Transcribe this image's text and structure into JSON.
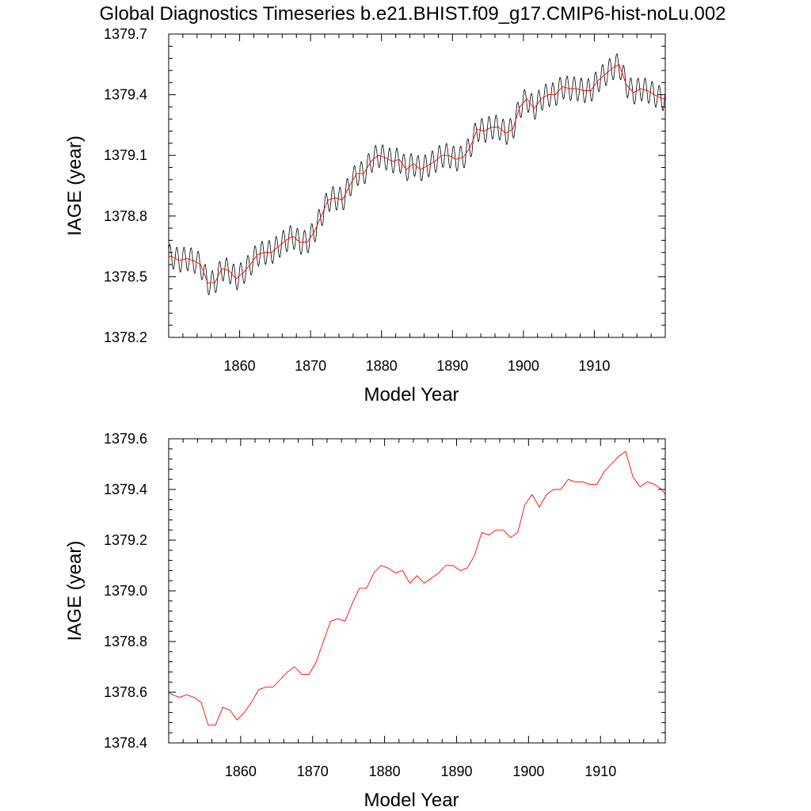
{
  "figure": {
    "title": "Global Diagnostics Timeseries b.e21.BHIST.f09_g17.CMIP6-hist-noLu.002"
  },
  "colors": {
    "monthly": "#000000",
    "annual": "#ff0000",
    "axes": "#000000",
    "background": "#ffffff"
  },
  "chart_data": [
    {
      "type": "line",
      "title": "Global Diagnostics Timeseries b.e21.BHIST.f09_g17.CMIP6-hist-noLu.002",
      "xlabel": "Model Year",
      "ylabel": "IAGE (year)",
      "xlim": [
        1850,
        1920
      ],
      "ylim": [
        1378.2,
        1379.7
      ],
      "grid": false,
      "legend": "none",
      "x_ticks": [
        1860,
        1870,
        1880,
        1890,
        1900,
        1910
      ],
      "y_ticks": [
        1378.2,
        1378.5,
        1378.8,
        1379.1,
        1379.4,
        1379.7
      ],
      "y_tick_labels": [
        "1378.2",
        "1378.5",
        "1378.8",
        "1379.1",
        "1379.4",
        "1379.7"
      ],
      "series": [
        {
          "color": "#000000",
          "stroke_width": 0.8,
          "seasonal_amplitude": 0.06,
          "x": [
            1850.0,
            1850.5,
            1851.5,
            1852.5,
            1853.5,
            1854.5,
            1855.5,
            1856.5,
            1857.5,
            1858.5,
            1859.5,
            1860.5,
            1861.5,
            1862.5,
            1863.5,
            1864.5,
            1865.5,
            1866.5,
            1867.5,
            1868.5,
            1869.5,
            1870.5,
            1871.5,
            1872.5,
            1873.5,
            1874.5,
            1875.5,
            1876.5,
            1877.5,
            1878.5,
            1879.5,
            1880.5,
            1881.5,
            1882.5,
            1883.5,
            1884.5,
            1885.5,
            1886.5,
            1887.5,
            1888.5,
            1889.5,
            1890.5,
            1891.5,
            1892.5,
            1893.5,
            1894.5,
            1895.5,
            1896.5,
            1897.5,
            1898.5,
            1899.5,
            1900.5,
            1901.5,
            1902.5,
            1903.5,
            1904.5,
            1905.5,
            1906.5,
            1907.5,
            1908.5,
            1909.5,
            1910.5,
            1911.5,
            1912.5,
            1913.5,
            1914.5,
            1915.5,
            1916.5,
            1917.5,
            1918.5,
            1919.5,
            1920.0
          ],
          "values": [
            1378.6,
            1378.6,
            1378.58,
            1378.59,
            1378.58,
            1378.56,
            1378.47,
            1378.47,
            1378.54,
            1378.53,
            1378.49,
            1378.52,
            1378.56,
            1378.61,
            1378.62,
            1378.62,
            1378.65,
            1378.68,
            1378.7,
            1378.67,
            1378.67,
            1378.72,
            1378.8,
            1378.88,
            1378.89,
            1378.88,
            1378.95,
            1379.01,
            1379.01,
            1379.07,
            1379.1,
            1379.09,
            1379.07,
            1379.08,
            1379.03,
            1379.06,
            1379.03,
            1379.05,
            1379.07,
            1379.1,
            1379.1,
            1379.08,
            1379.09,
            1379.14,
            1379.23,
            1379.22,
            1379.24,
            1379.24,
            1379.21,
            1379.23,
            1379.34,
            1379.38,
            1379.33,
            1379.38,
            1379.4,
            1379.4,
            1379.44,
            1379.43,
            1379.43,
            1379.42,
            1379.42,
            1379.47,
            1379.5,
            1379.53,
            1379.55,
            1379.45,
            1379.41,
            1379.43,
            1379.42,
            1379.4,
            1379.38,
            1379.38
          ]
        },
        {
          "color": "#ff0000",
          "stroke_width": 0.9,
          "x": [
            1850.0,
            1850.5,
            1851.5,
            1852.5,
            1853.5,
            1854.5,
            1855.5,
            1856.5,
            1857.5,
            1858.5,
            1859.5,
            1860.5,
            1861.5,
            1862.5,
            1863.5,
            1864.5,
            1865.5,
            1866.5,
            1867.5,
            1868.5,
            1869.5,
            1870.5,
            1871.5,
            1872.5,
            1873.5,
            1874.5,
            1875.5,
            1876.5,
            1877.5,
            1878.5,
            1879.5,
            1880.5,
            1881.5,
            1882.5,
            1883.5,
            1884.5,
            1885.5,
            1886.5,
            1887.5,
            1888.5,
            1889.5,
            1890.5,
            1891.5,
            1892.5,
            1893.5,
            1894.5,
            1895.5,
            1896.5,
            1897.5,
            1898.5,
            1899.5,
            1900.5,
            1901.5,
            1902.5,
            1903.5,
            1904.5,
            1905.5,
            1906.5,
            1907.5,
            1908.5,
            1909.5,
            1910.5,
            1911.5,
            1912.5,
            1913.5,
            1914.5,
            1915.5,
            1916.5,
            1917.5,
            1918.5,
            1919.5,
            1920.0
          ],
          "values": [
            1378.6,
            1378.6,
            1378.58,
            1378.59,
            1378.58,
            1378.56,
            1378.47,
            1378.47,
            1378.54,
            1378.53,
            1378.49,
            1378.52,
            1378.56,
            1378.61,
            1378.62,
            1378.62,
            1378.65,
            1378.68,
            1378.7,
            1378.67,
            1378.67,
            1378.72,
            1378.8,
            1378.88,
            1378.89,
            1378.88,
            1378.95,
            1379.01,
            1379.01,
            1379.07,
            1379.1,
            1379.09,
            1379.07,
            1379.08,
            1379.03,
            1379.06,
            1379.03,
            1379.05,
            1379.07,
            1379.1,
            1379.1,
            1379.08,
            1379.09,
            1379.14,
            1379.23,
            1379.22,
            1379.24,
            1379.24,
            1379.21,
            1379.23,
            1379.34,
            1379.38,
            1379.33,
            1379.38,
            1379.4,
            1379.4,
            1379.44,
            1379.43,
            1379.43,
            1379.42,
            1379.42,
            1379.47,
            1379.5,
            1379.53,
            1379.55,
            1379.45,
            1379.41,
            1379.43,
            1379.42,
            1379.4,
            1379.38,
            1379.38
          ]
        }
      ]
    },
    {
      "type": "line",
      "title": "",
      "xlabel": "Model Year",
      "ylabel": "IAGE (year)",
      "xlim": [
        1850,
        1919
      ],
      "ylim": [
        1378.4,
        1379.6
      ],
      "grid": false,
      "legend": "none",
      "x_ticks": [
        1860,
        1870,
        1880,
        1890,
        1900,
        1910
      ],
      "y_ticks": [
        1378.4,
        1378.6,
        1378.8,
        1379.0,
        1379.2,
        1379.4,
        1379.6
      ],
      "y_tick_labels": [
        "1378.4",
        "1378.6",
        "1378.8",
        "1379.0",
        "1379.2",
        "1379.4",
        "1379.6"
      ],
      "series": [
        {
          "color": "#ff0000",
          "stroke_width": 0.9,
          "x": [
            1850.0,
            1850.5,
            1851.5,
            1852.5,
            1853.5,
            1854.5,
            1855.5,
            1856.5,
            1857.5,
            1858.5,
            1859.5,
            1860.5,
            1861.5,
            1862.5,
            1863.5,
            1864.5,
            1865.5,
            1866.5,
            1867.5,
            1868.5,
            1869.5,
            1870.5,
            1871.5,
            1872.5,
            1873.5,
            1874.5,
            1875.5,
            1876.5,
            1877.5,
            1878.5,
            1879.5,
            1880.5,
            1881.5,
            1882.5,
            1883.5,
            1884.5,
            1885.5,
            1886.5,
            1887.5,
            1888.5,
            1889.5,
            1890.5,
            1891.5,
            1892.5,
            1893.5,
            1894.5,
            1895.5,
            1896.5,
            1897.5,
            1898.5,
            1899.5,
            1900.5,
            1901.5,
            1902.5,
            1903.5,
            1904.5,
            1905.5,
            1906.5,
            1907.5,
            1908.5,
            1909.5,
            1910.5,
            1911.5,
            1912.5,
            1913.5,
            1914.5,
            1915.5,
            1916.5,
            1917.5,
            1918.5,
            1919.0
          ],
          "values": [
            1378.6,
            1378.59,
            1378.58,
            1378.59,
            1378.58,
            1378.56,
            1378.47,
            1378.47,
            1378.54,
            1378.53,
            1378.49,
            1378.52,
            1378.56,
            1378.61,
            1378.62,
            1378.62,
            1378.65,
            1378.68,
            1378.7,
            1378.67,
            1378.67,
            1378.72,
            1378.8,
            1378.88,
            1378.89,
            1378.88,
            1378.95,
            1379.01,
            1379.01,
            1379.07,
            1379.1,
            1379.09,
            1379.07,
            1379.08,
            1379.03,
            1379.06,
            1379.03,
            1379.05,
            1379.07,
            1379.1,
            1379.1,
            1379.08,
            1379.09,
            1379.14,
            1379.23,
            1379.22,
            1379.24,
            1379.24,
            1379.21,
            1379.23,
            1379.34,
            1379.38,
            1379.33,
            1379.38,
            1379.4,
            1379.4,
            1379.44,
            1379.43,
            1379.43,
            1379.42,
            1379.42,
            1379.47,
            1379.5,
            1379.53,
            1379.55,
            1379.45,
            1379.41,
            1379.43,
            1379.42,
            1379.4,
            1379.38
          ]
        }
      ]
    }
  ]
}
